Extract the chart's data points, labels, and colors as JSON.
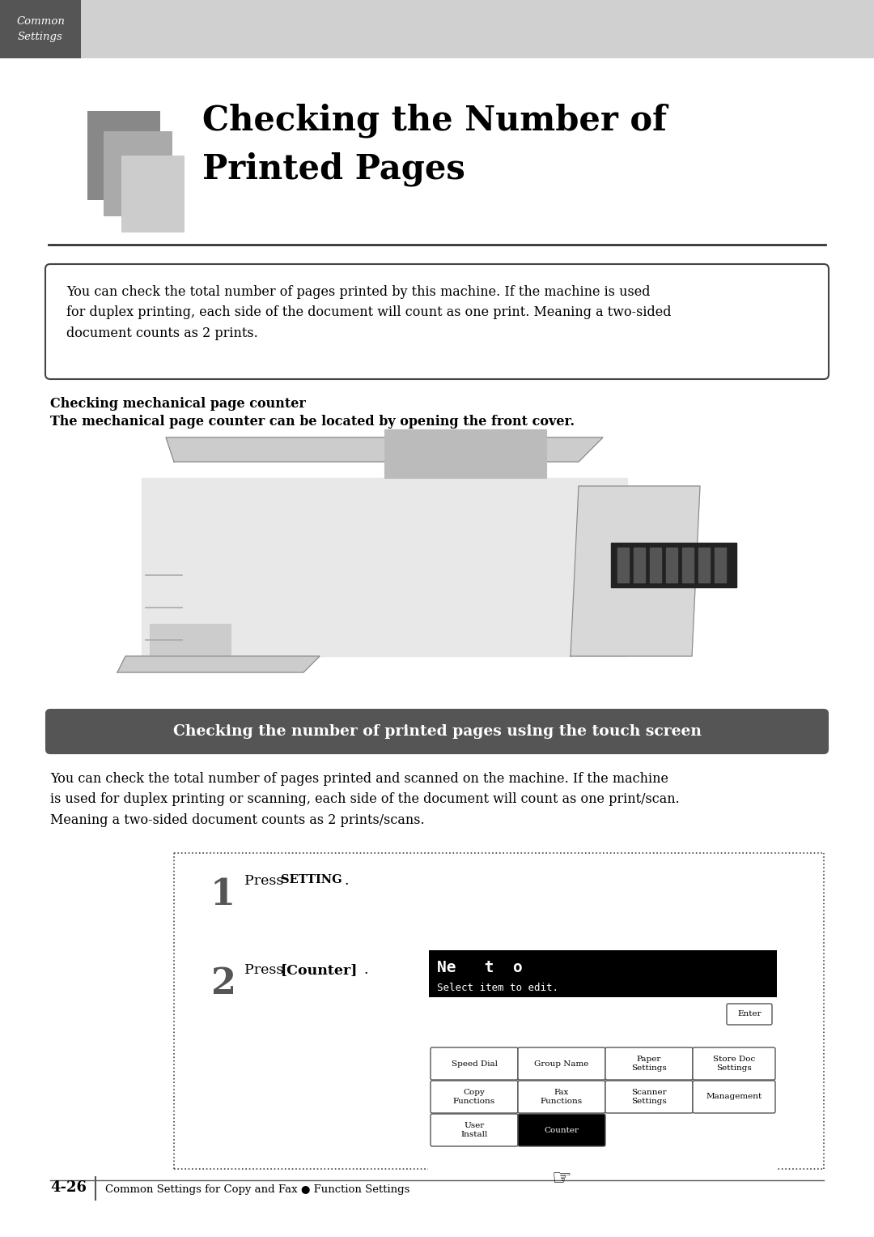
{
  "page_width": 10.8,
  "page_height": 15.27,
  "bg_color": "#ffffff",
  "header_bg": "#d0d0d0",
  "header_dark_bg": "#555555",
  "header_text": "Common\nSettings",
  "title_line1": "Checking the Number of",
  "title_line2": "Printed Pages",
  "desc_box_text": "You can check the total number of pages printed by this machine. If the machine is used\nfor duplex printing, each side of the document will count as one print. Meaning a two-sided\ndocument counts as 2 prints.",
  "mech_label1": "Checking mechanical page counter",
  "mech_label2": "The mechanical page counter can be located by opening the front cover.",
  "section_text": "Checking the number of printed pages using the touch screen",
  "body_text": "You can check the total number of pages printed and scanned on the machine. If the machine\nis used for duplex printing or scanning, each side of the document will count as one print/scan.\nMeaning a two-sided document counts as 2 prints/scans.",
  "step1_num": "1",
  "step2_num": "2",
  "step2_text": "Press [Counter].",
  "footer_page": "4-26",
  "footer_text": "Common Settings for Copy and Fax ● Function Settings",
  "screen_title1": "Ne   t  o",
  "screen_title2": "Select item to edit."
}
